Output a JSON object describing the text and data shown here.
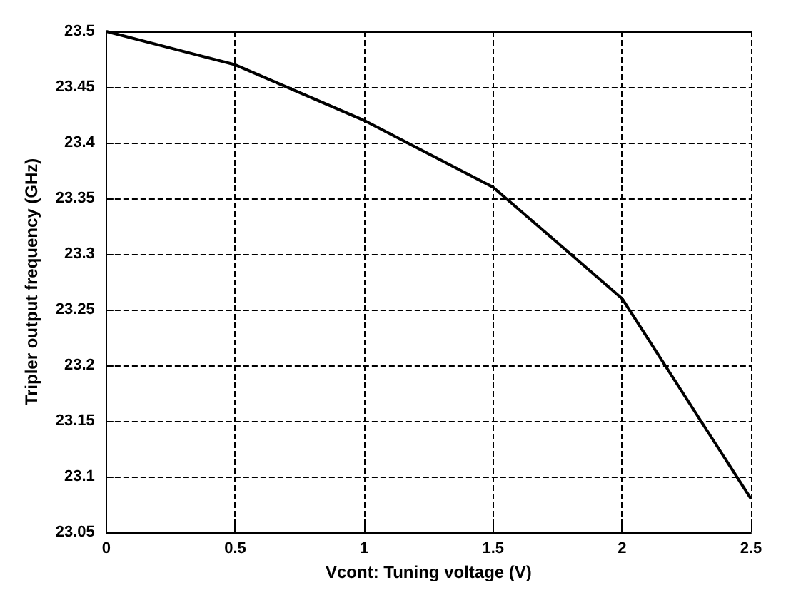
{
  "chart_data": {
    "type": "line",
    "xlabel": "Vcont: Tuning voltage (V)",
    "ylabel": "Tripler output frequency (GHz)",
    "x": [
      0,
      0.5,
      1,
      1.5,
      2,
      2.5
    ],
    "series": [
      {
        "color": "#000000",
        "values": [
          23.5,
          23.47,
          23.42,
          23.36,
          23.26,
          23.08
        ]
      }
    ],
    "xlim": [
      0,
      2.5
    ],
    "xticks": [
      0,
      0.5,
      1,
      1.5,
      2,
      2.5
    ],
    "ylim": [
      23.05,
      23.5
    ],
    "yticks": [
      23.05,
      23.1,
      23.15,
      23.2,
      23.25,
      23.3,
      23.35,
      23.4,
      23.45,
      23.5
    ],
    "grid": true,
    "line_style": "solid",
    "marker": "none"
  }
}
